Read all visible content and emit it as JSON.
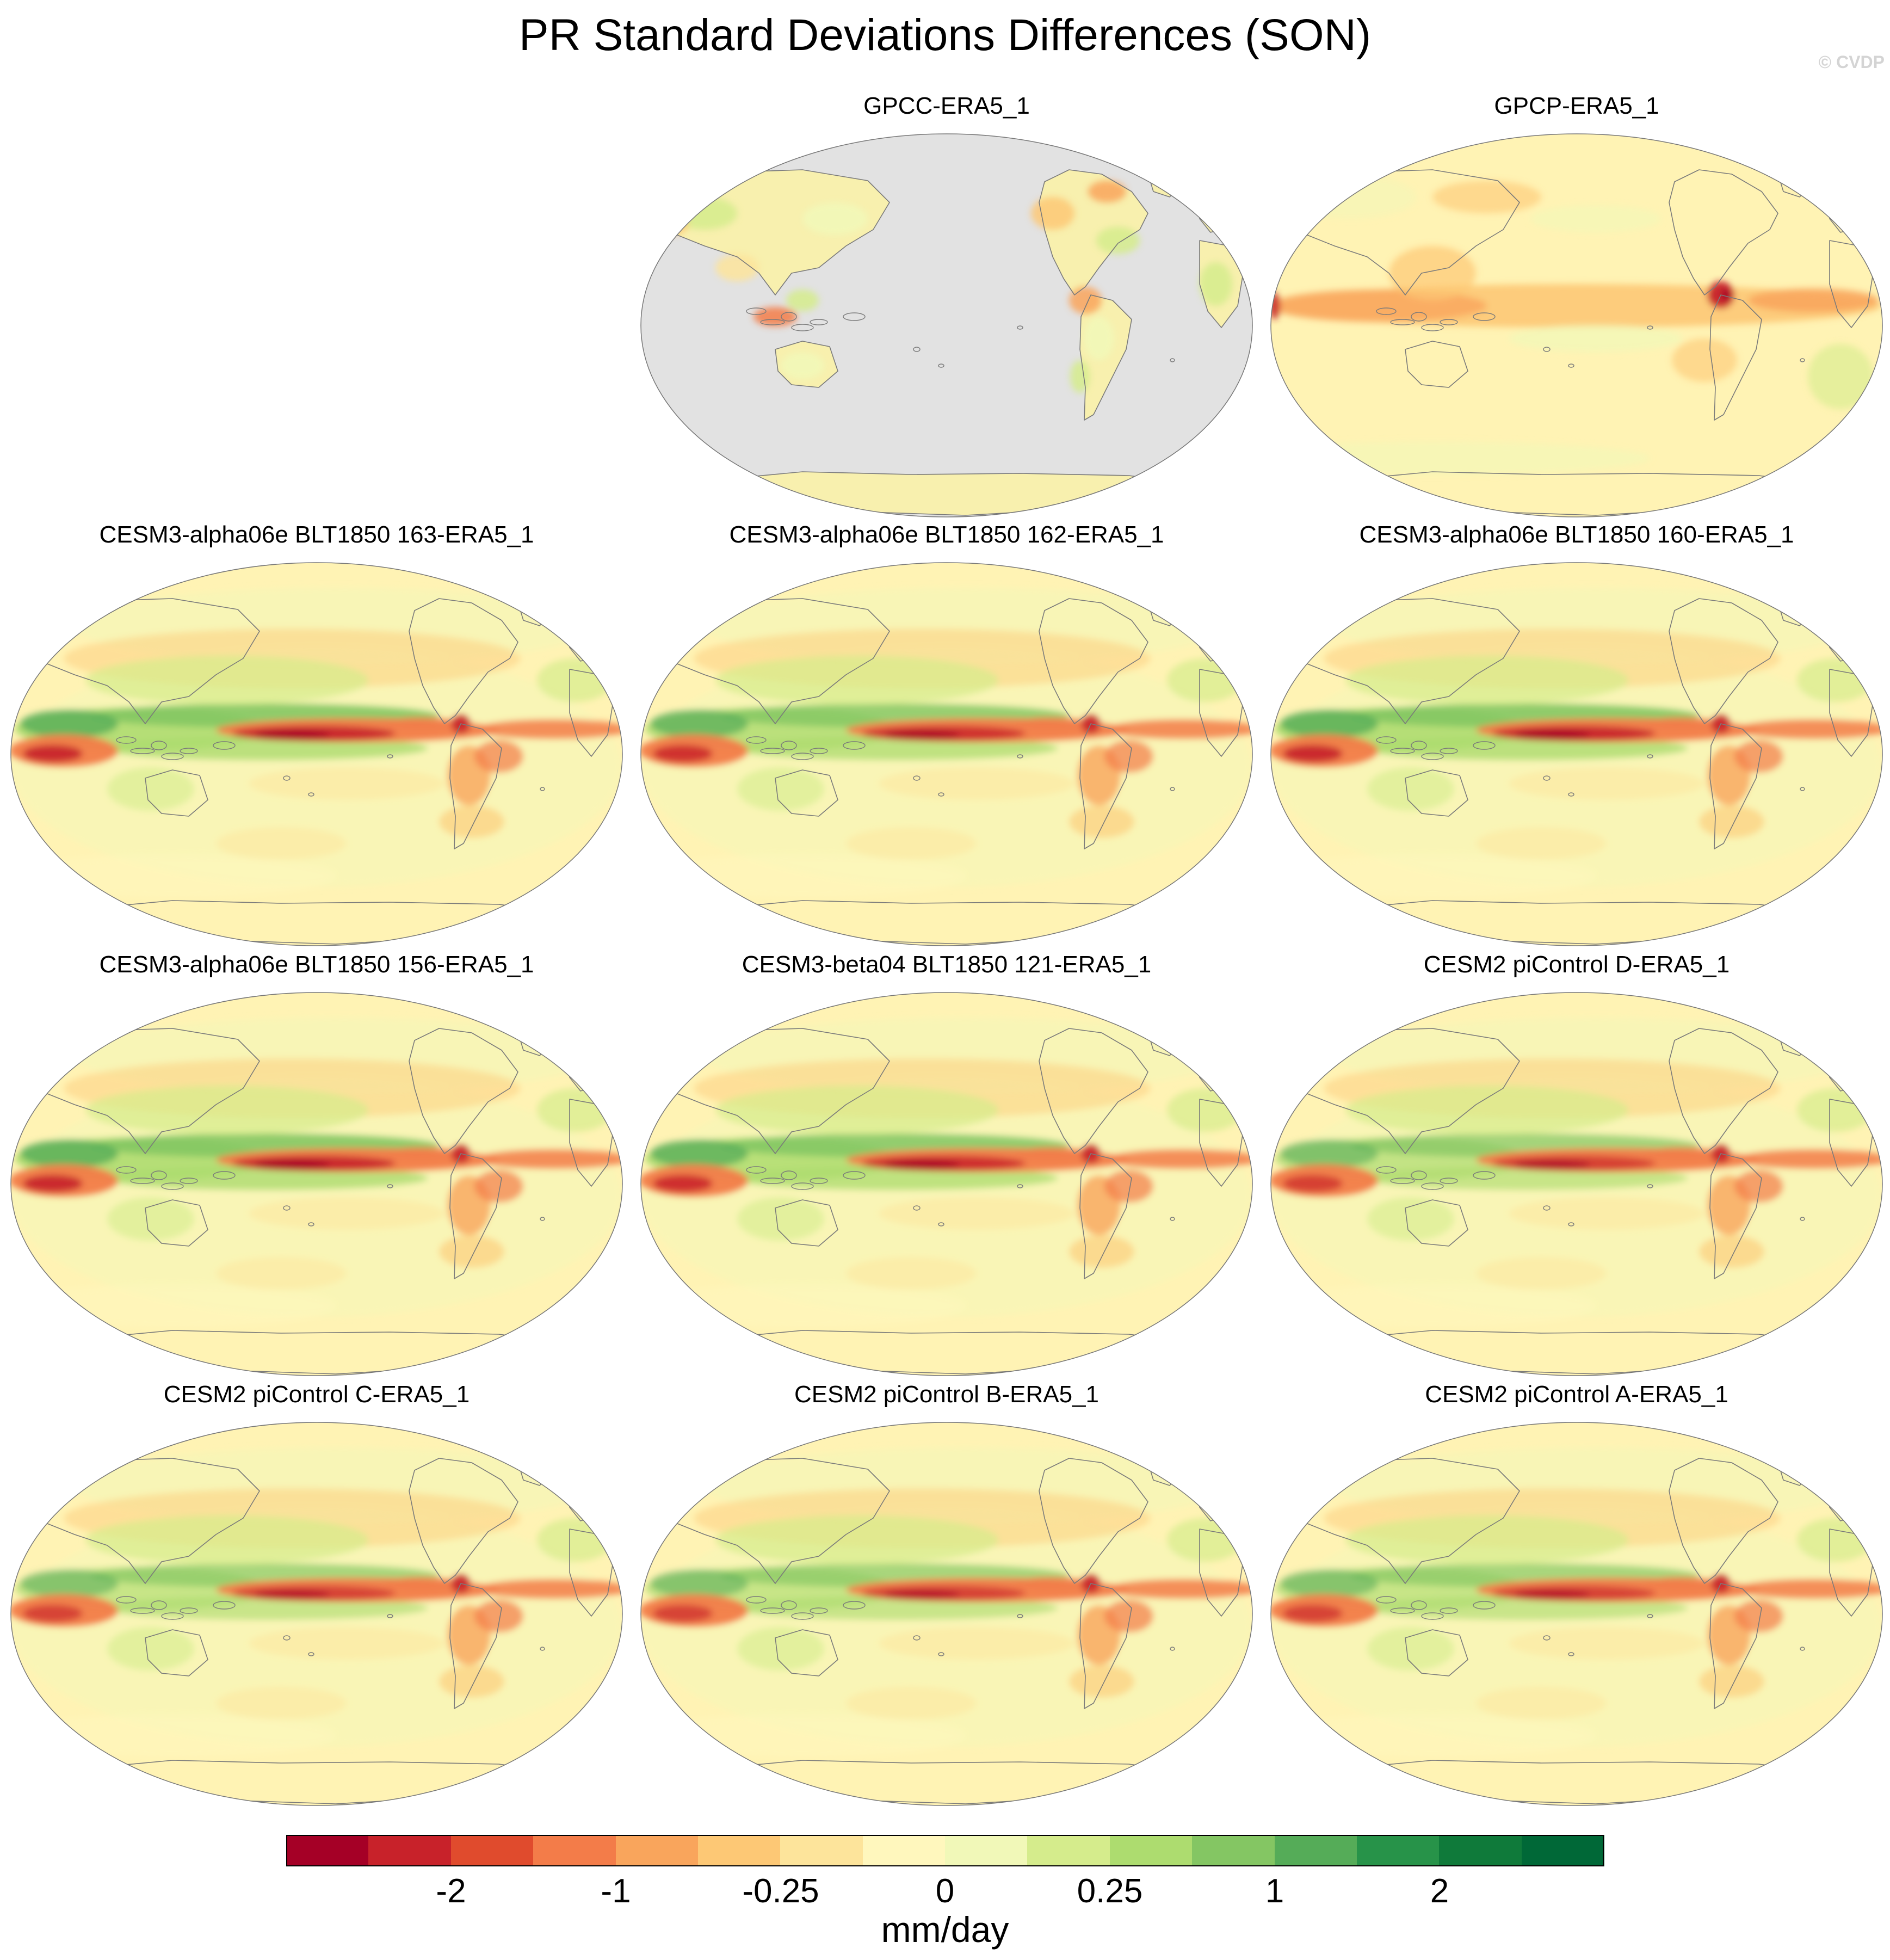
{
  "title": "PR Standard Deviations Differences (SON)",
  "copyright": "© CVDP",
  "colors": {
    "land_mask": "#e2e2e2",
    "coast": "#7a7a7a",
    "scale": [
      "#a50026",
      "#c8222a",
      "#e04b2d",
      "#f37c49",
      "#f9a55c",
      "#fdc875",
      "#fde49b",
      "#fff7bd",
      "#f1f8b8",
      "#d5ec8c",
      "#addc6f",
      "#84c663",
      "#55ac58",
      "#279349",
      "#0f7a3a",
      "#006837"
    ]
  },
  "panels": [
    {
      "id": "gpcc",
      "title": "GPCC-ERA5_1",
      "kind": "land_only"
    },
    {
      "id": "gpcp",
      "title": "GPCP-ERA5_1",
      "kind": "obs"
    },
    {
      "id": "a163",
      "title": "CESM3-alpha06e BLT1850 163-ERA5_1",
      "kind": "model",
      "strength": 1.0
    },
    {
      "id": "a162",
      "title": "CESM3-alpha06e BLT1850 162-ERA5_1",
      "kind": "model",
      "strength": 0.9
    },
    {
      "id": "a160",
      "title": "CESM3-alpha06e BLT1850 160-ERA5_1",
      "kind": "model",
      "strength": 1.0
    },
    {
      "id": "a156",
      "title": "CESM3-alpha06e BLT1850 156-ERA5_1",
      "kind": "model",
      "strength": 1.0
    },
    {
      "id": "b121",
      "title": "CESM3-beta04 BLT1850 121-ERA5_1",
      "kind": "model",
      "strength": 0.95
    },
    {
      "id": "pd",
      "title": "CESM2 piControl D-ERA5_1",
      "kind": "model",
      "strength": 0.75
    },
    {
      "id": "pc",
      "title": "CESM2 piControl C-ERA5_1",
      "kind": "model",
      "strength": 0.7
    },
    {
      "id": "pb",
      "title": "CESM2 piControl B-ERA5_1",
      "kind": "model",
      "strength": 0.7
    },
    {
      "id": "pa",
      "title": "CESM2 piControl A-ERA5_1",
      "kind": "model",
      "strength": 0.7
    }
  ],
  "colorbar": {
    "labels": [
      "-2",
      "-1",
      "-0.25",
      "0",
      "0.25",
      "1",
      "2"
    ],
    "units": "mm/day"
  }
}
